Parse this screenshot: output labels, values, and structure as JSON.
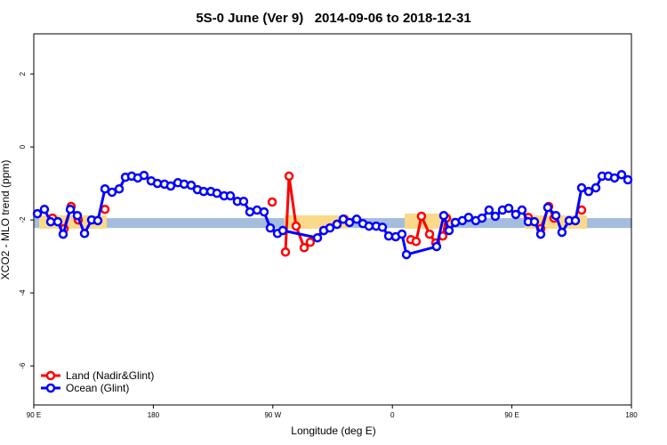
{
  "chart_data": {
    "type": "line",
    "title": "5S-0 June (Ver 9)   2014-09-06 to 2018-12-31",
    "xlabel": "Longitude (deg E)",
    "ylabel": "XCO2 - MLO trend (ppm)",
    "xlim": [
      90,
      540
    ],
    "ylim": [
      -7.07,
      3.1
    ],
    "xticks": [
      {
        "value": 90,
        "label": "90 E"
      },
      180,
      {
        "value": 270,
        "label": "90 W"
      },
      {
        "value": 360,
        "label": "0"
      },
      {
        "value": 450,
        "label": "90 E"
      },
      {
        "value": 540,
        "label": "180"
      }
    ],
    "yticks": [
      2,
      0,
      -2,
      -4,
      -6
    ],
    "legend": "bottom-left",
    "reference_band": {
      "range": [
        -1.95,
        -2.22
      ],
      "color": "#a5bcdd"
    },
    "series": [
      {
        "name": "Land (Nadir&Glint)",
        "color": "#ff0000",
        "x": [
          104.1,
          112.8,
          118.1,
          123.5,
          null,
          143.6,
          null,
          269.5,
          null,
          279.5,
          282.2,
          287.5,
          293.6,
          298.2,
          308.3,
          318.3,
          323.7,
          null,
          373.9,
          377.9,
          381.9,
          388.0,
          392.7,
          398.0,
          400.7,
          null,
          462.3,
          null,
          471.7,
          477.7,
          481.7,
          null,
          502.5
        ],
        "values": [
          -1.95,
          -2.24,
          -1.63,
          -2.0,
          null,
          -1.71,
          null,
          -1.51,
          null,
          -2.88,
          -0.8,
          -2.17,
          -2.76,
          -2.61,
          -2.29,
          -2.12,
          -1.98,
          null,
          -2.54,
          -2.59,
          -1.9,
          -2.39,
          -2.63,
          -2.44,
          -1.95,
          null,
          -1.93,
          null,
          -2.24,
          -1.63,
          -1.95,
          null,
          -1.73
        ]
      },
      {
        "name": "Ocean (Glint)",
        "color": "#0000ff",
        "x": [
          92.7,
          98.0,
          102.7,
          108.1,
          112.1,
          117.5,
          122.8,
          128.2,
          133.5,
          138.2,
          143.6,
          148.9,
          154.3,
          159.0,
          163.7,
          168.3,
          173.0,
          178.4,
          183.1,
          188.4,
          193.1,
          198.5,
          203.2,
          208.5,
          213.2,
          217.9,
          223.3,
          227.9,
          233.3,
          238.0,
          243.3,
          248.0,
          252.7,
          258.1,
          263.4,
          268.1,
          273.5,
          277.5,
          303.6,
          308.3,
          313.0,
          318.3,
          323.0,
          327.7,
          333.1,
          337.8,
          342.4,
          347.8,
          352.5,
          357.2,
          362.5,
          367.2,
          370.6,
          393.3,
          398.7,
          402.7,
          407.4,
          412.7,
          417.4,
          422.8,
          427.5,
          432.8,
          437.5,
          442.9,
          447.6,
          452.9,
          457.6,
          462.3,
          467.0,
          471.7,
          477.0,
          483.1,
          487.7,
          493.1,
          497.8,
          502.5,
          507.8,
          513.2,
          517.9,
          522.6,
          527.3,
          532.6,
          537.3
        ],
        "values": [
          -1.83,
          -1.71,
          -2.05,
          -2.05,
          -2.39,
          -1.71,
          -1.88,
          -2.37,
          -2.0,
          -2.02,
          -1.15,
          -1.24,
          -1.15,
          -0.83,
          -0.8,
          -0.85,
          -0.78,
          -0.93,
          -1.0,
          -1.02,
          -1.07,
          -0.98,
          -1.02,
          -1.05,
          -1.17,
          -1.22,
          -1.22,
          -1.27,
          -1.34,
          -1.34,
          -1.49,
          -1.49,
          -1.78,
          -1.73,
          -1.78,
          -2.22,
          -2.37,
          -2.29,
          -2.49,
          -2.29,
          -2.22,
          -2.12,
          -1.98,
          -2.07,
          -1.98,
          -2.1,
          -2.17,
          -2.17,
          -2.2,
          -2.44,
          -2.46,
          -2.39,
          -2.95,
          -2.73,
          -1.88,
          -2.29,
          -2.07,
          -2.02,
          -1.93,
          -2.02,
          -1.95,
          -1.73,
          -1.9,
          -1.73,
          -1.68,
          -1.85,
          -1.73,
          -2.05,
          -2.05,
          -2.39,
          -1.66,
          -1.88,
          -2.34,
          -2.02,
          -2.02,
          -1.12,
          -1.22,
          -1.12,
          -0.8,
          -0.8,
          -0.85,
          -0.76,
          -0.9
        ]
      }
    ]
  }
}
